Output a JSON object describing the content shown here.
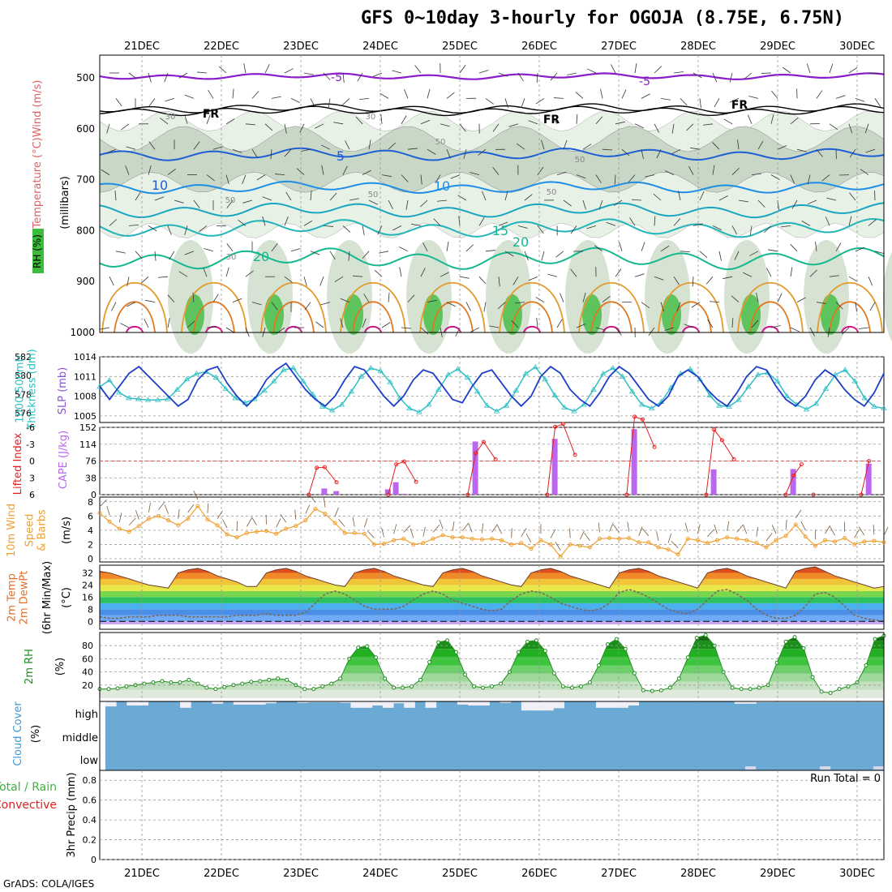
{
  "title": "GFS 0~10day 3-hourly for OGOJA (8.75E, 6.75N)",
  "credit": "GrADS: COLA/IGES",
  "dates": [
    "21DEC",
    "22DEC",
    "23DEC",
    "24DEC",
    "25DEC",
    "26DEC",
    "27DEC",
    "28DEC",
    "29DEC",
    "30DEC"
  ],
  "colors": {
    "wind_500_contour": "#8a1ccc",
    "freezing": "#000000",
    "contour_blue": "#1e5fd6",
    "contour_teal": "#1aa6c0",
    "contour_green": "#14b88f",
    "contour_orange": "#e39a2a",
    "contour_magenta": "#d0108a",
    "slp_line": "#1e3ec8",
    "thickness_line": "#2fc0c4",
    "cape_bar": "#bb66ee",
    "lifted_index": "#e02020",
    "wind10m": "#f0a030",
    "rh2m": "#1f8f1f",
    "cloud_bg": "#6aaad4",
    "cloud_fill": "#f0eef6"
  },
  "chart_data": [
    {
      "panel": "upper_air",
      "type": "heatmap",
      "ylabel": [
        "RH (%)",
        "Temperature (°C)",
        "Wind (m/s)",
        "(millibars)"
      ],
      "y_ticks": [
        500,
        600,
        700,
        800,
        900,
        1000
      ],
      "temperature_labels": [
        "-5",
        "-5",
        "FR",
        "FR",
        "FR",
        "5",
        "10",
        "10",
        "15",
        "20",
        "20"
      ],
      "rh_labels": [
        "30",
        "30",
        "50",
        "50",
        "50",
        "50",
        "50",
        "30"
      ]
    },
    {
      "panel": "thickness_slp",
      "type": "line",
      "ylabel_left": "1000-500mb Thickness (dm)",
      "ylabel_right": "SLP (mb)",
      "left_ticks": [
        "582",
        "580",
        "578",
        "576"
      ],
      "right_ticks": [
        "1014",
        "1011",
        "1008",
        "1005"
      ],
      "series": [
        {
          "name": "SLP",
          "values": [
            1009.5,
            1007.5,
            1009.5,
            1011.5,
            1012.5,
            1011,
            1009.5,
            1008,
            1006.5,
            1007.5,
            1010.5,
            1012,
            1012.5,
            1010,
            1008,
            1006.5,
            1008,
            1010.5,
            1012,
            1013,
            1011,
            1009,
            1007.5,
            1006.5,
            1008,
            1010.5,
            1012.5,
            1012,
            1010,
            1008,
            1006.5,
            1008,
            1010.5,
            1012,
            1011.5,
            1009.5,
            1007.5,
            1007,
            1009.5,
            1011.5,
            1012,
            1010,
            1008,
            1006.5,
            1008,
            1011,
            1012.5,
            1011.5,
            1009,
            1007.5,
            1006.5,
            1008.5,
            1011,
            1012.5,
            1011.5,
            1009.5,
            1007.5,
            1006.5,
            1008,
            1011,
            1012,
            1011,
            1009,
            1007.5,
            1006.5,
            1008.5,
            1011,
            1012.5,
            1012,
            1009.5,
            1007.5,
            1006.5,
            1008,
            1010.5,
            1012,
            1011,
            1009,
            1007.5,
            1006.5,
            1008.5,
            1011.5
          ]
        },
        {
          "name": "Thickness",
          "values": [
            578.8,
            579.5,
            578.2,
            577.6,
            577.5,
            577.4,
            577.4,
            577.5,
            578.5,
            579.6,
            580.2,
            580.4,
            579.8,
            578.6,
            577.6,
            577.1,
            577.5,
            578.4,
            579.4,
            580.6,
            580.8,
            579.4,
            578,
            576.7,
            576.3,
            576.9,
            578.3,
            579.9,
            580.8,
            580.5,
            579.3,
            577.6,
            576.5,
            576.1,
            576.9,
            578.5,
            580.1,
            580.7,
            579.8,
            578.3,
            576.8,
            576.2,
            576.8,
            578.4,
            580.2,
            580.9,
            579.6,
            577.9,
            576.6,
            576.2,
            576.9,
            578.5,
            580.2,
            580.8,
            579.9,
            578.3,
            576.9,
            576.5,
            577.2,
            578.7,
            580.2,
            580.7,
            579.6,
            577.9,
            576.8,
            576.7,
            577.4,
            578.8,
            580.1,
            580.3,
            579.4,
            577.8,
            576.9,
            576.4,
            577,
            578.6,
            580.1,
            580.6,
            579.4,
            577.6,
            576.7,
            576.5
          ]
        }
      ]
    },
    {
      "panel": "cape_li",
      "type": "bar",
      "ylabel_left": "Lifted Index",
      "ylabel_right": "CAPE (J/kg)",
      "left_ticks": [
        "-6",
        "-3",
        "0",
        "3",
        "6"
      ],
      "right_ticks": [
        "152",
        "114",
        "76",
        "38",
        "0"
      ],
      "series": [
        {
          "name": "CAPE",
          "x": [
            3.2,
            3.3,
            3.45,
            4.1,
            4.2,
            4.3,
            5.1,
            5.2,
            6.1,
            6.2,
            7.1,
            7.2,
            8.1,
            8.2,
            9.1,
            9.2,
            10.05,
            10.15
          ],
          "values": [
            0,
            14,
            8,
            12,
            28,
            2,
            0,
            120,
            0,
            126,
            0,
            148,
            0,
            57,
            0,
            58,
            0,
            70
          ]
        },
        {
          "name": "Lifted Index",
          "x": [
            3.1,
            3.2,
            3.3,
            3.45,
            4.1,
            4.2,
            4.3,
            4.45,
            5.1,
            5.2,
            5.3,
            5.45,
            6.1,
            6.2,
            6.3,
            6.45,
            7.1,
            7.2,
            7.3,
            7.45,
            8.1,
            8.2,
            8.3,
            8.45,
            9.1,
            9.2,
            9.3,
            9.45,
            10.05,
            10.15
          ],
          "values": [
            6,
            1.2,
            1.1,
            3.8,
            6,
            0.6,
            0.1,
            3.7,
            6,
            -1.4,
            -3.4,
            -0.3,
            6,
            -6.1,
            -6.6,
            -1.1,
            6,
            -7.9,
            -7.4,
            -2.5,
            6,
            -5.6,
            -3.7,
            -0.3,
            6,
            2.6,
            0.6,
            6,
            6,
            0
          ]
        }
      ]
    },
    {
      "panel": "wind10m",
      "type": "line",
      "ylabel": [
        "10m Wind",
        "Speed",
        "& Barbs",
        "(m/s)"
      ],
      "y_ticks": [
        "0",
        "2",
        "4",
        "6",
        "8"
      ],
      "series": [
        {
          "name": "10m Wind Speed",
          "values": [
            6.4,
            5.2,
            4.2,
            3.8,
            4.6,
            5.6,
            6.0,
            5.4,
            4.7,
            5.6,
            7.4,
            5.5,
            4.7,
            3.4,
            3.0,
            3.6,
            3.8,
            3.9,
            3.5,
            4.2,
            4.6,
            5.4,
            7.0,
            6.3,
            5.0,
            3.6,
            3.6,
            3.5,
            2.0,
            2.1,
            2.6,
            2.8,
            2.0,
            2.2,
            2.8,
            3.3,
            3.0,
            3.0,
            2.8,
            2.7,
            2.8,
            2.6,
            2.0,
            2.2,
            1.4,
            2.6,
            2.0,
            0.3,
            2.0,
            1.8,
            1.6,
            2.8,
            2.9,
            2.8,
            2.9,
            2.3,
            2.3,
            1.6,
            1.3,
            0.6,
            2.8,
            2.6,
            2.2,
            2.6,
            3.0,
            2.8,
            2.6,
            2.2,
            1.6,
            2.6,
            3.2,
            4.8,
            3.1,
            1.8,
            2.6,
            2.4,
            2.9,
            2.0,
            2.4,
            2.5,
            2.3
          ]
        }
      ]
    },
    {
      "panel": "temp2m",
      "type": "area",
      "ylabel": [
        "2m Temp",
        "2m DewPt",
        "(6hr Min/Max)",
        "(°C)"
      ],
      "y_ticks": [
        "0",
        "8",
        "16",
        "24",
        "32"
      ],
      "series": [
        {
          "name": "2m Temp",
          "values": [
            33,
            32,
            30,
            28,
            26,
            24,
            23,
            22,
            32,
            34,
            35,
            33,
            30,
            28,
            26,
            23,
            23,
            32,
            34,
            35,
            33,
            30,
            28,
            26,
            24,
            23,
            32,
            34,
            35,
            33,
            30,
            28,
            26,
            24,
            23,
            32,
            34,
            35,
            33,
            30,
            28,
            26,
            24,
            23,
            32,
            34,
            35,
            33,
            30,
            28,
            26,
            24,
            22,
            32,
            34,
            35,
            33,
            30,
            28,
            26,
            24,
            22,
            32,
            34,
            35,
            33,
            30,
            28,
            26,
            24,
            22,
            33,
            35,
            36,
            33,
            30,
            28,
            26,
            24,
            22,
            23
          ]
        },
        {
          "name": "2m DewPt",
          "values": [
            3,
            2,
            2,
            3,
            3,
            3,
            4,
            4,
            4,
            3,
            3,
            3,
            3,
            3,
            4,
            4,
            4,
            5,
            4,
            4,
            4,
            6,
            12,
            18,
            20,
            18,
            14,
            10,
            8,
            8,
            8,
            10,
            14,
            18,
            20,
            18,
            14,
            12,
            10,
            8,
            7,
            8,
            14,
            18,
            20,
            19,
            16,
            12,
            10,
            8,
            7,
            8,
            12,
            19,
            21,
            19,
            16,
            12,
            8,
            6,
            5,
            8,
            14,
            20,
            21,
            18,
            14,
            8,
            4,
            2,
            2,
            4,
            10,
            18,
            19,
            16,
            10,
            4,
            2,
            1,
            0
          ]
        }
      ]
    },
    {
      "panel": "rh2m",
      "type": "area",
      "ylabel": [
        "2m RH",
        "(%)"
      ],
      "y_ticks": [
        "20",
        "40",
        "60",
        "80"
      ],
      "series": [
        {
          "name": "2m RH",
          "values": [
            14,
            14,
            15,
            18,
            20,
            22,
            24,
            26,
            24,
            24,
            28,
            22,
            16,
            14,
            17,
            20,
            22,
            25,
            26,
            28,
            30,
            28,
            20,
            14,
            14,
            18,
            22,
            30,
            60,
            77,
            79,
            62,
            30,
            16,
            16,
            18,
            28,
            55,
            85,
            88,
            70,
            36,
            18,
            16,
            18,
            22,
            40,
            70,
            86,
            88,
            72,
            38,
            18,
            16,
            18,
            24,
            50,
            82,
            90,
            75,
            38,
            12,
            11,
            12,
            16,
            30,
            62,
            92,
            96,
            80,
            40,
            16,
            14,
            14,
            16,
            20,
            54,
            86,
            93,
            76,
            32,
            10,
            8,
            14,
            18,
            24,
            50,
            90,
            95
          ]
        }
      ]
    },
    {
      "panel": "cloud",
      "type": "bar",
      "ylabel": [
        "Cloud Cover",
        "(%)"
      ],
      "y_ticks": [
        "high",
        "middle",
        "low"
      ],
      "series": [
        {
          "name": "high",
          "values": [
            22,
            0,
            18,
            18,
            0,
            0,
            0,
            28,
            0,
            0,
            10,
            0,
            14,
            14,
            14,
            8,
            0,
            0,
            6,
            4,
            4,
            4,
            6,
            28,
            28,
            18,
            28,
            8,
            28,
            0,
            28,
            0,
            0,
            14,
            18,
            18,
            0,
            6,
            0,
            40,
            40,
            40,
            30,
            0,
            0,
            0,
            28,
            28,
            28,
            18,
            0,
            0,
            0,
            0,
            0,
            0,
            0,
            0,
            0,
            10,
            10,
            4,
            4,
            4,
            4,
            4,
            4,
            4,
            4,
            4,
            4,
            4,
            4
          ]
        },
        {
          "name": "low",
          "values": [
            0,
            0,
            0,
            0,
            0,
            0,
            0,
            0,
            0,
            0,
            0,
            0,
            0,
            0,
            0,
            0,
            0,
            0,
            0,
            0,
            0,
            0,
            0,
            0,
            0,
            0,
            0,
            0,
            0,
            0,
            0,
            0,
            0,
            0,
            0,
            0,
            0,
            0,
            0,
            0,
            0,
            0,
            0,
            0,
            0,
            0,
            0,
            0,
            0,
            0,
            0,
            0,
            0,
            0,
            0,
            0,
            0,
            0,
            0,
            0,
            6,
            0,
            0,
            0,
            0,
            0,
            0,
            6,
            0,
            0,
            0,
            0,
            6
          ]
        }
      ]
    },
    {
      "panel": "precip",
      "type": "bar",
      "ylabel": [
        "Total / Rain",
        "Convective",
        "3hr Precip (mm)"
      ],
      "y_ticks": [
        "0",
        "0.2",
        "0.4",
        "0.6",
        "0.8"
      ],
      "run_total": "Run Total = 0",
      "series": [
        {
          "name": "3hr Precip",
          "values": []
        }
      ]
    }
  ]
}
